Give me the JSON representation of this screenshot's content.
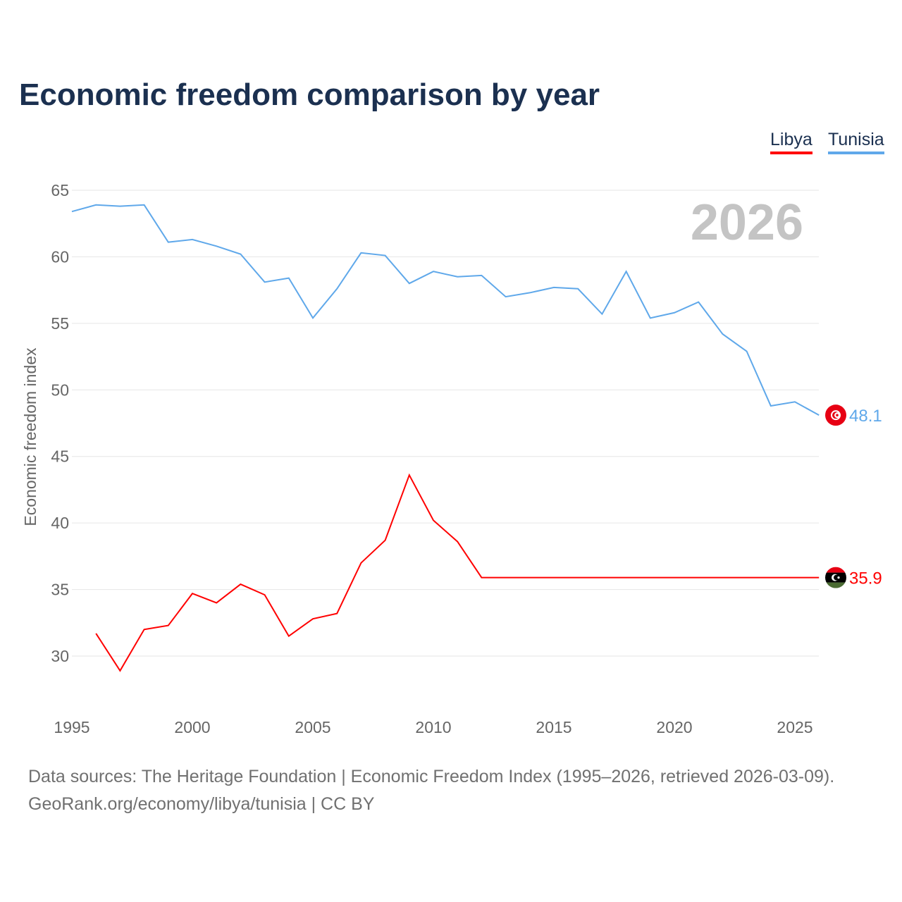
{
  "title": "Economic freedom comparison by year",
  "footer": {
    "line1": "Data sources: The Heritage Foundation | Economic Freedom Index (1995–2026, retrieved 2026-03-09).",
    "line2": "GeoRank.org/economy/libya/tunisia | CC BY"
  },
  "chart_data": {
    "type": "line",
    "title": "Economic freedom comparison by year",
    "ylabel": "Economic freedom index",
    "xlabel": "",
    "watermark_year": "2026",
    "ylim": [
      25,
      66
    ],
    "xlim": [
      1995,
      2026
    ],
    "yticks": [
      30,
      35,
      40,
      45,
      50,
      55,
      60,
      65
    ],
    "xticks": [
      1995,
      2000,
      2005,
      2010,
      2015,
      2020,
      2025
    ],
    "grid": true,
    "legend_placement": "top-right",
    "series": [
      {
        "name": "Libya",
        "color": "#ff0000",
        "end_label": "35.9",
        "flag": "libya-flag",
        "x": [
          1996,
          1997,
          1998,
          1999,
          2000,
          2001,
          2002,
          2003,
          2004,
          2005,
          2006,
          2007,
          2008,
          2009,
          2010,
          2011,
          2012,
          2013,
          2014,
          2015,
          2016,
          2017,
          2018,
          2019,
          2020,
          2021,
          2022,
          2023,
          2024,
          2025,
          2026
        ],
        "values": [
          31.7,
          28.9,
          32.0,
          32.3,
          34.7,
          34.0,
          35.4,
          34.6,
          31.5,
          32.8,
          33.2,
          37.0,
          38.7,
          43.6,
          40.2,
          38.6,
          35.9,
          35.9,
          35.9,
          35.9,
          35.9,
          35.9,
          35.9,
          35.9,
          35.9,
          35.9,
          35.9,
          35.9,
          35.9,
          35.9,
          35.9
        ]
      },
      {
        "name": "Tunisia",
        "color": "#5fa8ea",
        "end_label": "48.1",
        "flag": "tunisia-flag",
        "x": [
          1995,
          1996,
          1997,
          1998,
          1999,
          2000,
          2001,
          2002,
          2003,
          2004,
          2005,
          2006,
          2007,
          2008,
          2009,
          2010,
          2011,
          2012,
          2013,
          2014,
          2015,
          2016,
          2017,
          2018,
          2019,
          2020,
          2021,
          2022,
          2023,
          2024,
          2025,
          2026
        ],
        "values": [
          63.4,
          63.9,
          63.8,
          63.9,
          61.1,
          61.3,
          60.8,
          60.2,
          58.1,
          58.4,
          55.4,
          57.6,
          60.3,
          60.1,
          58.0,
          58.9,
          58.5,
          58.6,
          57.0,
          57.3,
          57.7,
          57.6,
          55.7,
          58.9,
          55.4,
          55.8,
          56.6,
          54.2,
          52.9,
          48.8,
          49.1,
          48.1
        ]
      }
    ]
  }
}
